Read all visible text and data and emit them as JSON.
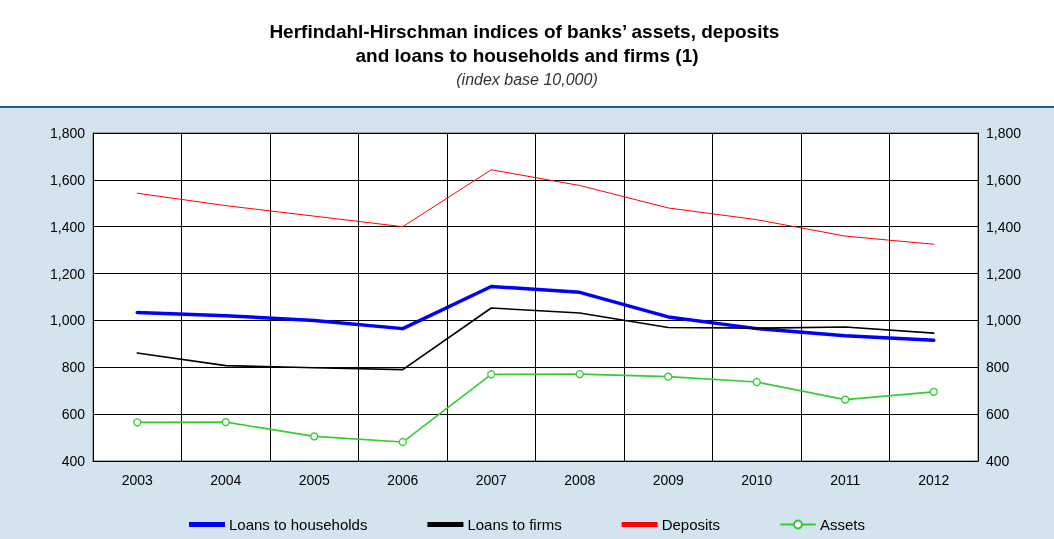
{
  "chart_data": {
    "type": "line",
    "title": "Herfindahl-Hirschman indices of banks’ assets, deposits and loans to households and firms (1)",
    "subtitle": "(index base 10,000)",
    "categories": [
      "2003",
      "2004",
      "2005",
      "2006",
      "2007",
      "2008",
      "2009",
      "2010",
      "2011",
      "2012"
    ],
    "series": [
      {
        "name": "Loans to households",
        "color": "#0000ff",
        "marker": "none",
        "values": [
          1034,
          1020,
          1000,
          965,
          1145,
          1120,
          1015,
          965,
          935,
          915
        ]
      },
      {
        "name": "Loans to firms",
        "color": "#000000",
        "marker": "none",
        "values": [
          861,
          807,
          798,
          790,
          1053,
          1032,
          970,
          967,
          972,
          946
        ]
      },
      {
        "name": "Deposits",
        "color": "#ff0000",
        "marker": "none",
        "values": [
          1543,
          1490,
          1445,
          1400,
          1643,
          1576,
          1480,
          1430,
          1360,
          1325
        ]
      },
      {
        "name": "Assets",
        "color": "#33cc33",
        "marker": "circle",
        "values": [
          565,
          566,
          505,
          481,
          770,
          771,
          760,
          737,
          662,
          695
        ]
      }
    ],
    "ylim": [
      400,
      1800
    ],
    "yticks": [
      400,
      600,
      800,
      {
        "value": 1000,
        "label": "1,000"
      },
      {
        "value": 1200,
        "label": "1,200"
      },
      {
        "value": 1400,
        "label": "1,400"
      },
      {
        "value": 1600,
        "label": "1,600"
      },
      {
        "value": 1800,
        "label": "1,800"
      }
    ],
    "y2lim": [
      400,
      1800
    ],
    "y2ticks": [
      400,
      600,
      800,
      {
        "value": 1000,
        "label": "1,000"
      },
      {
        "value": 1200,
        "label": "1,200"
      },
      {
        "value": 1400,
        "label": "1,400"
      },
      {
        "value": 1600,
        "label": "1,600"
      },
      {
        "value": 1800,
        "label": "1,800"
      }
    ],
    "grid": true,
    "legend": "bottom",
    "line_style": "solid"
  }
}
